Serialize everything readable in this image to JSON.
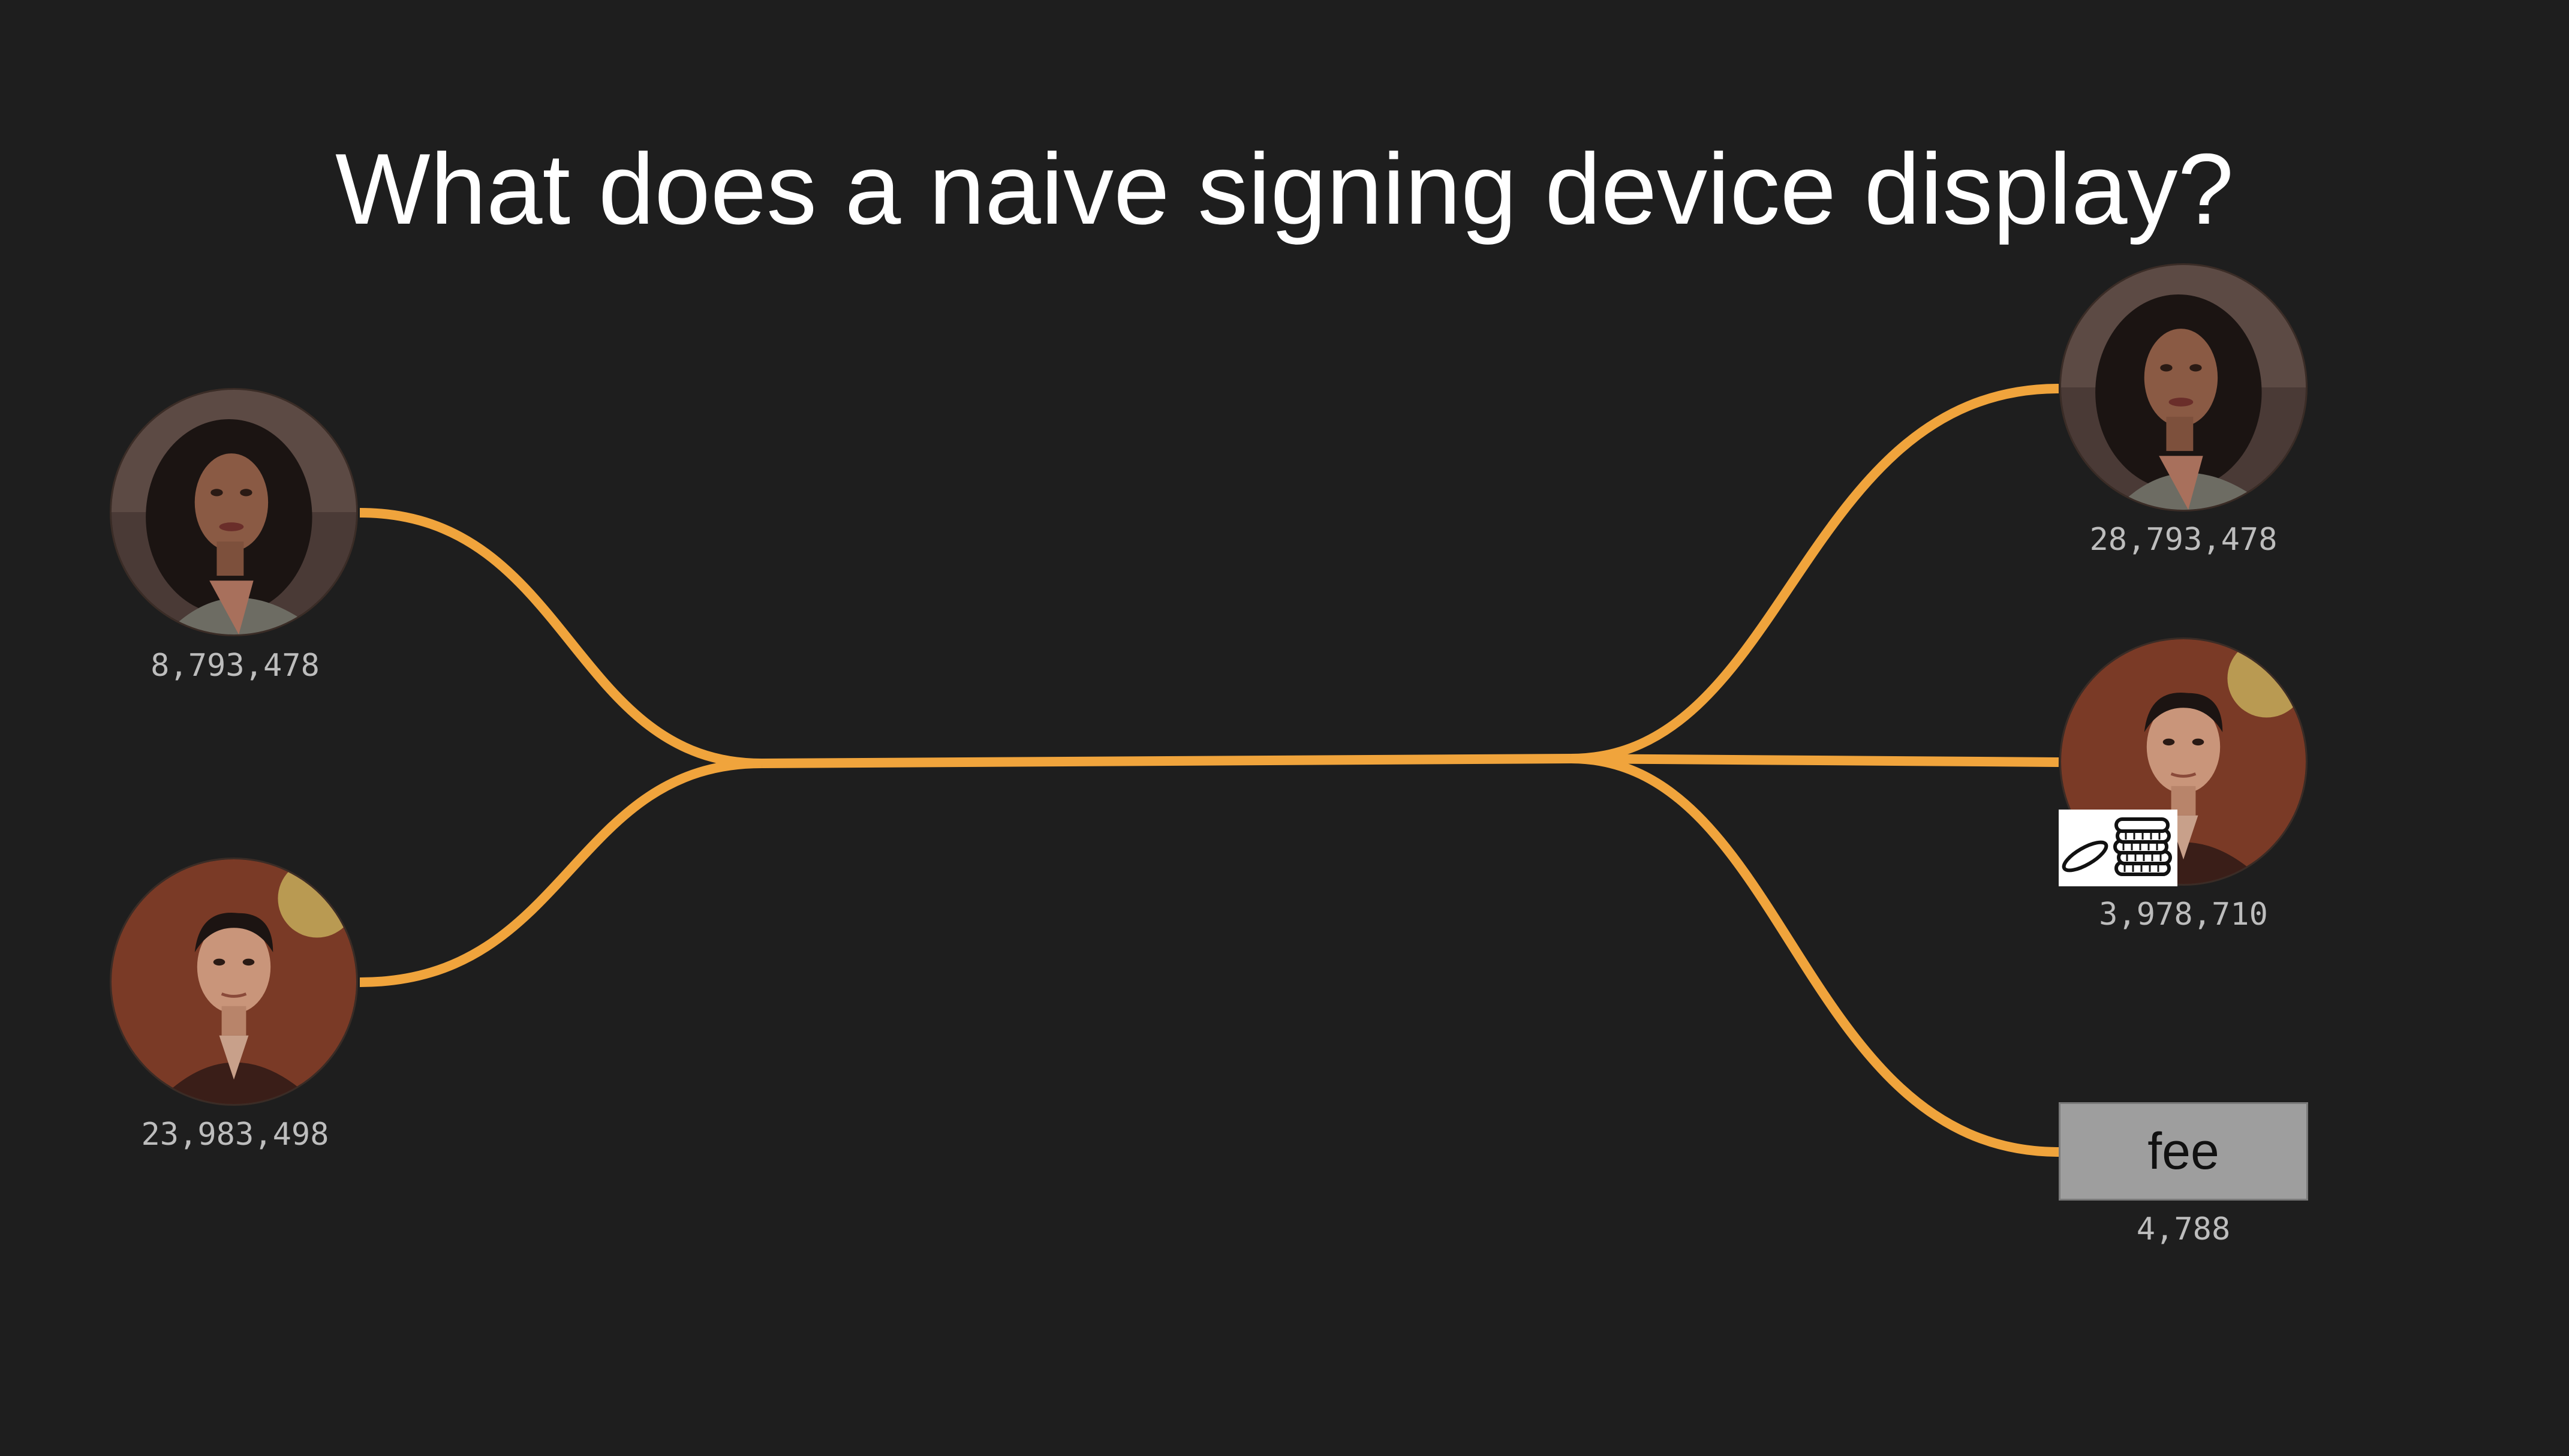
{
  "slide": {
    "title": "What does a naive signing device display?"
  },
  "inputs": [
    {
      "person": "woman",
      "amount": "8,793,478"
    },
    {
      "person": "man",
      "amount": "23,983,498"
    }
  ],
  "outputs": [
    {
      "person": "woman",
      "amount": "28,793,478"
    },
    {
      "person": "man",
      "amount": "3,978,710",
      "badge": "coins-icon"
    },
    {
      "label": "fee",
      "amount": "4,788"
    }
  ],
  "colors": {
    "background": "#1e1e1e",
    "flow": "#f0a43c",
    "amount_text": "#bdbdbd",
    "fee_box": "#9e9e9e"
  }
}
